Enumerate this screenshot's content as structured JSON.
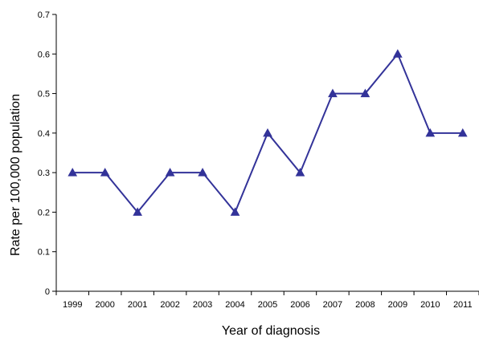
{
  "chart_data": {
    "type": "line",
    "title": "",
    "xlabel": "Year of diagnosis",
    "ylabel": "Rate per 100,000 population",
    "categories": [
      "1999",
      "2000",
      "2001",
      "2002",
      "2003",
      "2004",
      "2005",
      "2006",
      "2007",
      "2008",
      "2009",
      "2010",
      "2011"
    ],
    "ylim": [
      0,
      0.7
    ],
    "yticks": [
      "0",
      "0.1",
      "0.2",
      "0.3",
      "0.4",
      "0.5",
      "0.6",
      "0.7"
    ],
    "grid": false,
    "legend": "none",
    "series": [
      {
        "values": [
          0.3,
          0.3,
          0.2,
          0.3,
          0.3,
          0.2,
          0.4,
          0.3,
          0.5,
          0.5,
          0.6,
          0.4,
          0.4
        ],
        "color": "#333399",
        "marker": "triangle"
      }
    ]
  }
}
